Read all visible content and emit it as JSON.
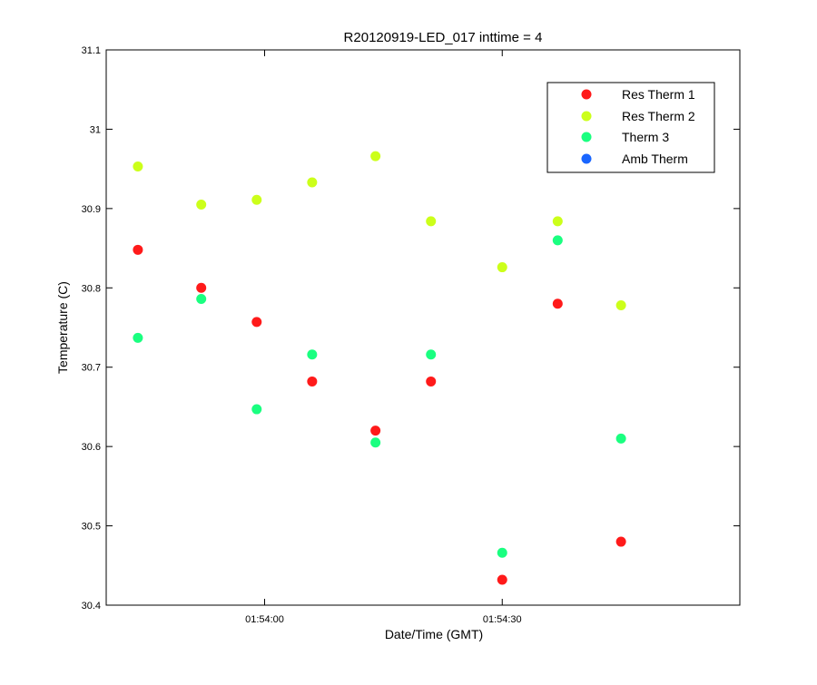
{
  "chart_data": {
    "type": "scatter",
    "title": "R20120919-LED_017 inttime = 4",
    "xlabel": "Date/Time (GMT)",
    "ylabel": "Temperature (C)",
    "x": [
      "01:53:44",
      "01:53:52",
      "01:53:59",
      "01:54:06",
      "01:54:14",
      "01:54:21",
      "01:54:30",
      "01:54:37",
      "01:54:45"
    ],
    "xlim": [
      "01:53:40",
      "01:55:00"
    ],
    "xticks": [
      "01:54:00",
      "01:54:30"
    ],
    "ylim": [
      30.4,
      31.1
    ],
    "yticks": [
      "30.4",
      "30.5",
      "30.6",
      "30.7",
      "30.8",
      "30.9",
      "31",
      "31.1"
    ],
    "grid": false,
    "legend_position": "top-right",
    "series": [
      {
        "name": "Res Therm 1",
        "color": "#ff1a1a",
        "values": [
          30.848,
          30.8,
          30.757,
          30.682,
          30.62,
          30.682,
          30.432,
          30.78,
          30.48
        ]
      },
      {
        "name": "Res Therm 2",
        "color": "#ccff1a",
        "values": [
          30.953,
          30.905,
          30.911,
          30.933,
          30.966,
          30.884,
          30.826,
          30.884,
          30.778
        ]
      },
      {
        "name": "Therm 3",
        "color": "#1aff80",
        "values": [
          30.737,
          30.786,
          30.647,
          30.716,
          30.605,
          30.716,
          30.466,
          30.86,
          30.61
        ]
      },
      {
        "name": "Amb Therm",
        "color": "#1a66ff",
        "values": []
      }
    ]
  }
}
